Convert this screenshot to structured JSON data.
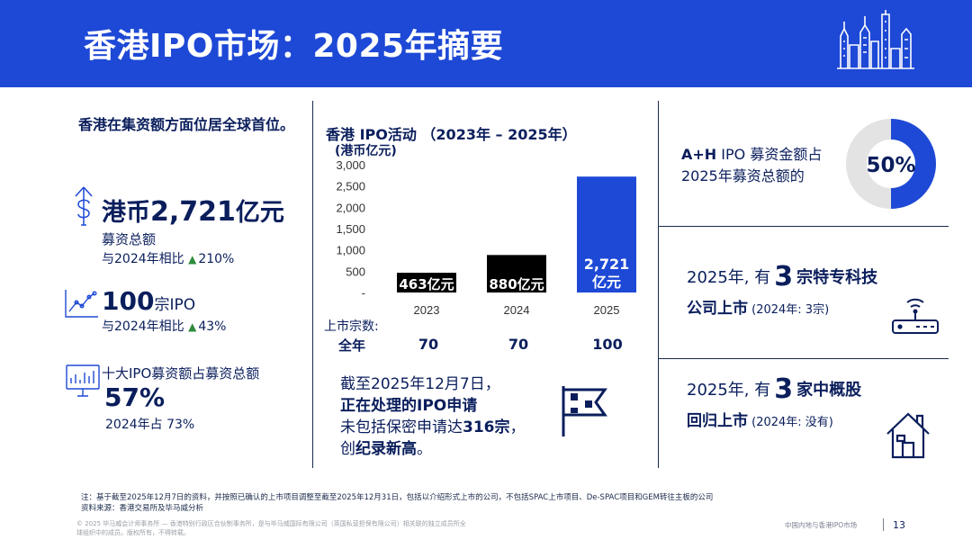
{
  "header": {
    "title": "香港IPO市场：2025年摘要"
  },
  "left": {
    "heading": "香港在集资额方面位居全球首位。",
    "proceeds": {
      "prefix": "港币",
      "number": "2,721",
      "suffix": "亿元",
      "label": "募资总额",
      "compare": "与2024年相比",
      "change": "210%"
    },
    "ipos": {
      "number": "100",
      "unit": "宗IPO",
      "compare": "与2024年相比",
      "change": "43%"
    },
    "top10": {
      "label": "十大IPO募资额占募资总额",
      "value": "57%",
      "note": "2024年占 73%"
    }
  },
  "chart_section": {
    "title": "香港 IPO活动 （2023年 – 2025年）",
    "unit": "(港币亿元)",
    "count_label_1": "上市宗数:",
    "count_label_2": "全年",
    "counts": [
      "70",
      "70",
      "100"
    ]
  },
  "chart_data": {
    "type": "bar",
    "title": "香港 IPO活动 （2023年 – 2025年）",
    "ylabel": "港币亿元",
    "categories": [
      "2023",
      "2024",
      "2025"
    ],
    "values": [
      463,
      880,
      2721
    ],
    "data_labels": [
      "463亿元",
      "880亿元",
      "2,721亿元"
    ],
    "yticks": [
      "-",
      "500",
      "1,000",
      "1,500",
      "2,000",
      "2,500",
      "3,000"
    ],
    "ylim": [
      0,
      3000
    ],
    "colors": [
      "#000000",
      "#000000",
      "#1e49d6"
    ]
  },
  "pending": {
    "line1": "截至2025年12月7日，",
    "line2": "正在处理的IPO申请",
    "line3_a": "未包括保密申请达",
    "line3_b": "316宗",
    "line3_c": "，",
    "line4_a": "创",
    "line4_b": "纪录新高",
    "line4_c": "。"
  },
  "right": {
    "ah_line1_a": "A+H",
    "ah_line1_b": " IPO 募资金额占",
    "ah_line2": "2025年募资总额的",
    "ah_pct": "50%",
    "ah_pct_value": 50,
    "tech_pre": "2025年, 有",
    "tech_num": "3",
    "tech_post": "宗特专科技",
    "tech_sub": "公司上市",
    "tech_note": " (2024年: 3宗)",
    "china_pre": "2025年, 有",
    "china_num": "3",
    "china_post": "家中概股",
    "china_sub": "回归上市",
    "china_note": " (2024年: 没有)"
  },
  "footer": {
    "note": "注：基于截至2025年12月7日的资料，并按照已确认的上市项目调整至截至2025年12月31日，包括以介绍形式上市的公司，不包括SPAC上市项目、De-SPAC项目和GEM转往主板的公司",
    "source": "资料来源：香港交易所及毕马威分析",
    "copyright1": "© 2025 毕马威会计师事务所 — 香港特别行政区合伙制事务所，是与毕马威国际有限公司（英国私营担保有限公司）相关联的独立成员所全",
    "copyright2": "球组织中的成员。版权所有，不得转载。",
    "doc_title": "中国内地与香港IPO市场",
    "page": "13"
  },
  "colors": {
    "brand_blue": "#1e49d6",
    "navy": "#0a1e5c",
    "up_green": "#2e8b3c",
    "donut_grey": "#e3e3e3"
  }
}
